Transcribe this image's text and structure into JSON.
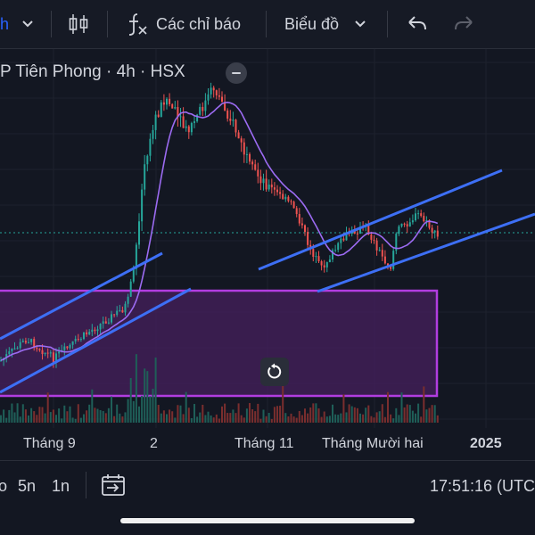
{
  "toolbar": {
    "symbol_partial": "h",
    "indicators_label": "Các chỉ báo",
    "chart_type_label": "Biểu đồ"
  },
  "legend": {
    "symbol_title": "P Tiên Phong · 4h · HSX"
  },
  "chart_data": {
    "type": "candlestick",
    "x_axis_labels": [
      "Tháng 9",
      "2",
      "Tháng 11",
      "Tháng Mười hai",
      "2025"
    ],
    "series": [
      "price candles",
      "moving average",
      "volume"
    ],
    "colors": {
      "up": "#26a69a",
      "down": "#ef5350",
      "ma": "#9c6bf2",
      "trendline": "#3d6ff5",
      "zone_border": "#b23de0",
      "zone_fill": "#47205e",
      "price_line": "#26a69a"
    }
  },
  "bottom_bar": {
    "range_5d_partial": "o",
    "range_5y": "5n",
    "range_1y": "1n",
    "clock": "17:51:16 (UTC"
  },
  "icons": [
    "chevron-down-icon",
    "candles-icon",
    "fx-icon",
    "undo-icon",
    "redo-icon",
    "reset-icon",
    "goto-date-icon"
  ]
}
